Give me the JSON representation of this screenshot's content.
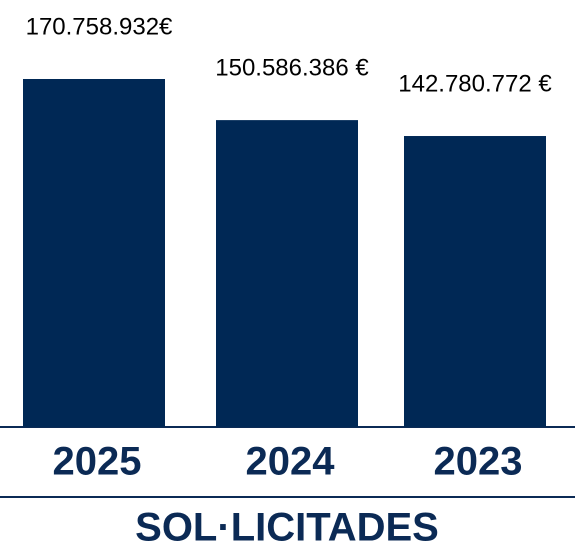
{
  "chart_data": {
    "type": "bar",
    "title": "SOL·LICITADES",
    "categories": [
      "2025",
      "2024",
      "2023"
    ],
    "values": [
      170758932,
      150586386,
      142780772
    ],
    "value_labels": [
      "170.758.932€",
      "150.586.386 €",
      "142.780.772 €"
    ],
    "color": "#002855"
  }
}
